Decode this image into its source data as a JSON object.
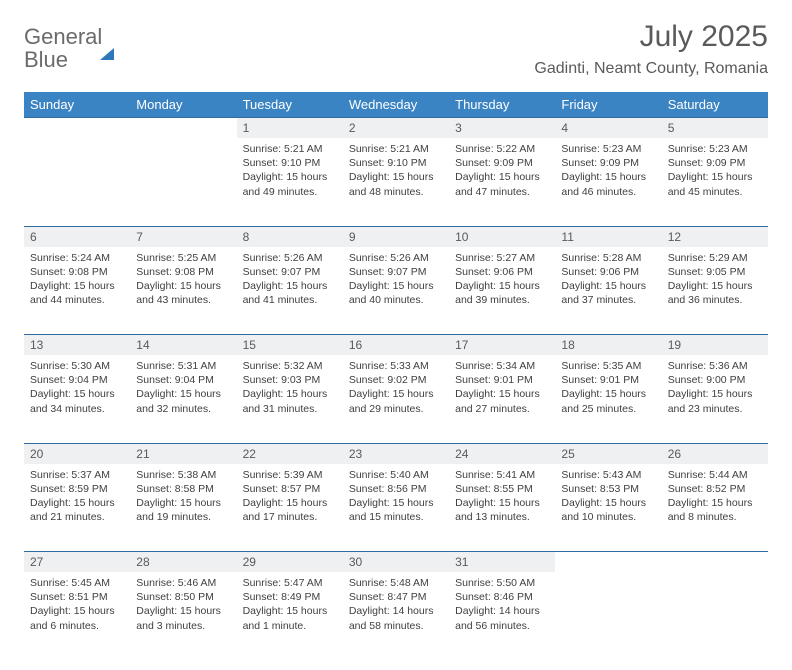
{
  "brand": {
    "part1": "General",
    "part2": "Blue"
  },
  "title": "July 2025",
  "location": "Gadinti, Neamt County, Romania",
  "header_bg": "#3b84c4",
  "header_fg": "#ffffff",
  "daynum_bg": "#eef0f1",
  "rule_color": "#2f6aa0",
  "weekdays": [
    "Sunday",
    "Monday",
    "Tuesday",
    "Wednesday",
    "Thursday",
    "Friday",
    "Saturday"
  ],
  "weeks": [
    {
      "nums": [
        "",
        "",
        "1",
        "2",
        "3",
        "4",
        "5"
      ],
      "cells": [
        null,
        null,
        {
          "sunrise": "5:21 AM",
          "sunset": "9:10 PM",
          "daylight": "15 hours and 49 minutes."
        },
        {
          "sunrise": "5:21 AM",
          "sunset": "9:10 PM",
          "daylight": "15 hours and 48 minutes."
        },
        {
          "sunrise": "5:22 AM",
          "sunset": "9:09 PM",
          "daylight": "15 hours and 47 minutes."
        },
        {
          "sunrise": "5:23 AM",
          "sunset": "9:09 PM",
          "daylight": "15 hours and 46 minutes."
        },
        {
          "sunrise": "5:23 AM",
          "sunset": "9:09 PM",
          "daylight": "15 hours and 45 minutes."
        }
      ]
    },
    {
      "nums": [
        "6",
        "7",
        "8",
        "9",
        "10",
        "11",
        "12"
      ],
      "cells": [
        {
          "sunrise": "5:24 AM",
          "sunset": "9:08 PM",
          "daylight": "15 hours and 44 minutes."
        },
        {
          "sunrise": "5:25 AM",
          "sunset": "9:08 PM",
          "daylight": "15 hours and 43 minutes."
        },
        {
          "sunrise": "5:26 AM",
          "sunset": "9:07 PM",
          "daylight": "15 hours and 41 minutes."
        },
        {
          "sunrise": "5:26 AM",
          "sunset": "9:07 PM",
          "daylight": "15 hours and 40 minutes."
        },
        {
          "sunrise": "5:27 AM",
          "sunset": "9:06 PM",
          "daylight": "15 hours and 39 minutes."
        },
        {
          "sunrise": "5:28 AM",
          "sunset": "9:06 PM",
          "daylight": "15 hours and 37 minutes."
        },
        {
          "sunrise": "5:29 AM",
          "sunset": "9:05 PM",
          "daylight": "15 hours and 36 minutes."
        }
      ]
    },
    {
      "nums": [
        "13",
        "14",
        "15",
        "16",
        "17",
        "18",
        "19"
      ],
      "cells": [
        {
          "sunrise": "5:30 AM",
          "sunset": "9:04 PM",
          "daylight": "15 hours and 34 minutes."
        },
        {
          "sunrise": "5:31 AM",
          "sunset": "9:04 PM",
          "daylight": "15 hours and 32 minutes."
        },
        {
          "sunrise": "5:32 AM",
          "sunset": "9:03 PM",
          "daylight": "15 hours and 31 minutes."
        },
        {
          "sunrise": "5:33 AM",
          "sunset": "9:02 PM",
          "daylight": "15 hours and 29 minutes."
        },
        {
          "sunrise": "5:34 AM",
          "sunset": "9:01 PM",
          "daylight": "15 hours and 27 minutes."
        },
        {
          "sunrise": "5:35 AM",
          "sunset": "9:01 PM",
          "daylight": "15 hours and 25 minutes."
        },
        {
          "sunrise": "5:36 AM",
          "sunset": "9:00 PM",
          "daylight": "15 hours and 23 minutes."
        }
      ]
    },
    {
      "nums": [
        "20",
        "21",
        "22",
        "23",
        "24",
        "25",
        "26"
      ],
      "cells": [
        {
          "sunrise": "5:37 AM",
          "sunset": "8:59 PM",
          "daylight": "15 hours and 21 minutes."
        },
        {
          "sunrise": "5:38 AM",
          "sunset": "8:58 PM",
          "daylight": "15 hours and 19 minutes."
        },
        {
          "sunrise": "5:39 AM",
          "sunset": "8:57 PM",
          "daylight": "15 hours and 17 minutes."
        },
        {
          "sunrise": "5:40 AM",
          "sunset": "8:56 PM",
          "daylight": "15 hours and 15 minutes."
        },
        {
          "sunrise": "5:41 AM",
          "sunset": "8:55 PM",
          "daylight": "15 hours and 13 minutes."
        },
        {
          "sunrise": "5:43 AM",
          "sunset": "8:53 PM",
          "daylight": "15 hours and 10 minutes."
        },
        {
          "sunrise": "5:44 AM",
          "sunset": "8:52 PM",
          "daylight": "15 hours and 8 minutes."
        }
      ]
    },
    {
      "nums": [
        "27",
        "28",
        "29",
        "30",
        "31",
        "",
        ""
      ],
      "cells": [
        {
          "sunrise": "5:45 AM",
          "sunset": "8:51 PM",
          "daylight": "15 hours and 6 minutes."
        },
        {
          "sunrise": "5:46 AM",
          "sunset": "8:50 PM",
          "daylight": "15 hours and 3 minutes."
        },
        {
          "sunrise": "5:47 AM",
          "sunset": "8:49 PM",
          "daylight": "15 hours and 1 minute."
        },
        {
          "sunrise": "5:48 AM",
          "sunset": "8:47 PM",
          "daylight": "14 hours and 58 minutes."
        },
        {
          "sunrise": "5:50 AM",
          "sunset": "8:46 PM",
          "daylight": "14 hours and 56 minutes."
        },
        null,
        null
      ]
    }
  ]
}
